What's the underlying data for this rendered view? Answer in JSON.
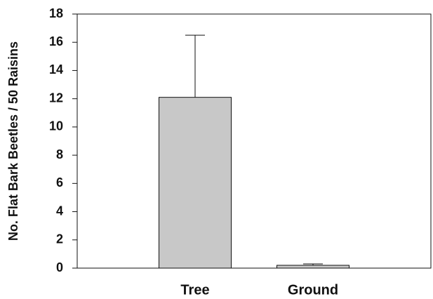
{
  "chart_data": {
    "type": "bar",
    "ylabel": "No. Flat Bark Beetles / 50 Raisins",
    "categories": [
      "Tree",
      "Ground"
    ],
    "values": [
      12.1,
      0.2
    ],
    "errors": [
      4.4,
      0.1
    ],
    "color": "#c8c8c8",
    "ylim": [
      0,
      18
    ],
    "yticks": [
      0,
      2,
      4,
      6,
      8,
      10,
      12,
      14,
      16,
      18
    ]
  }
}
